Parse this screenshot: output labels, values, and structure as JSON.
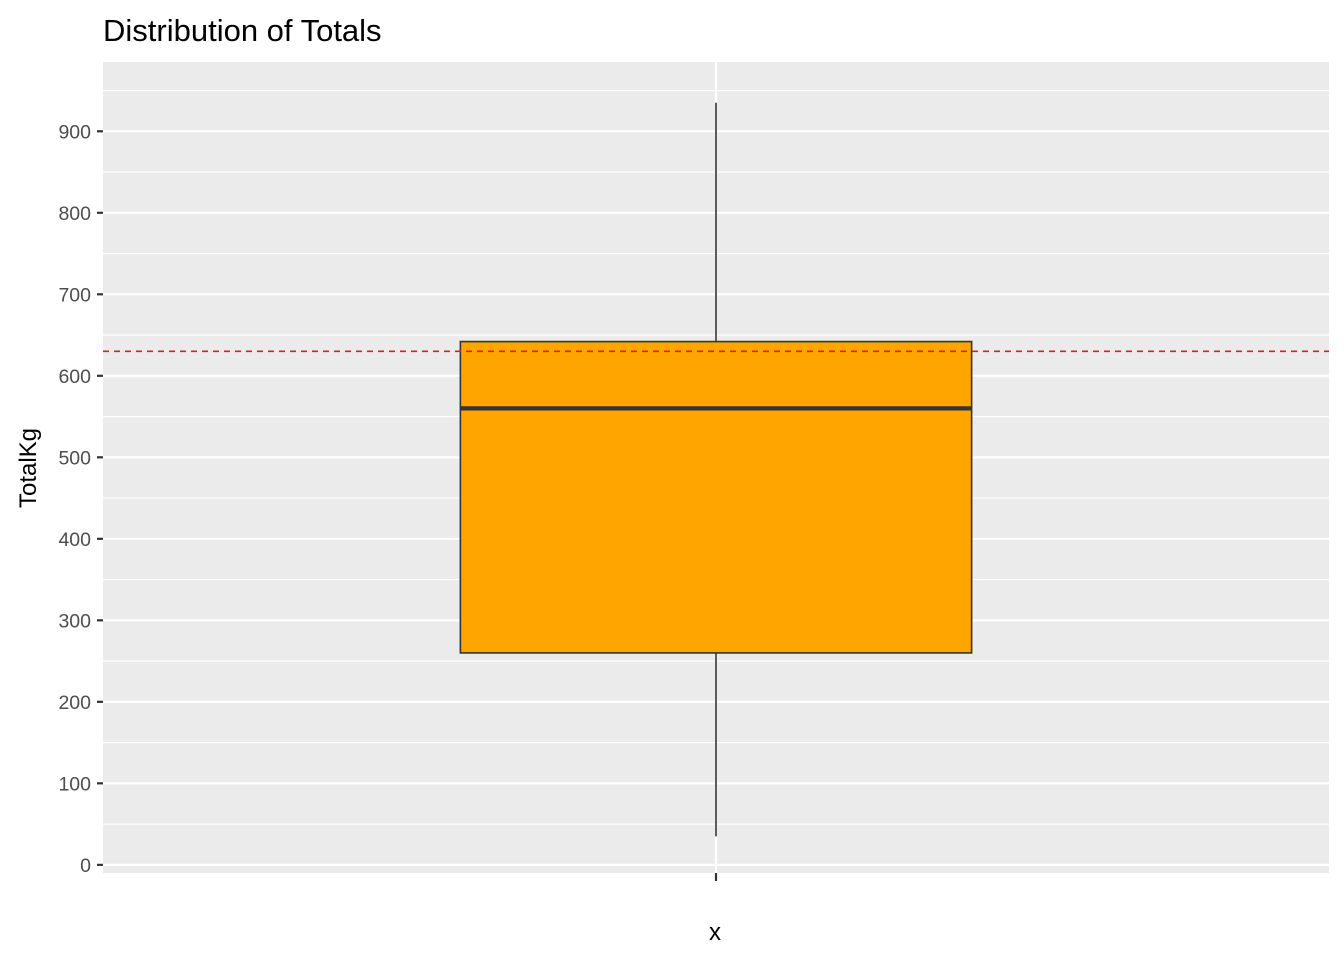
{
  "chart_data": {
    "type": "boxplot",
    "title": "Distribution of Totals",
    "xlabel": "x",
    "ylabel": "TotalKg",
    "categories": [
      ""
    ],
    "ylim": [
      -10,
      985
    ],
    "yticks": [
      0,
      100,
      200,
      300,
      400,
      500,
      600,
      700,
      800,
      900
    ],
    "ytick_labels": [
      "0",
      "100",
      "200",
      "300",
      "400",
      "500",
      "600",
      "700",
      "800",
      "900"
    ],
    "grid": true,
    "legend": "none",
    "boxes": [
      {
        "category": "",
        "min": 35,
        "q1": 260,
        "median": 560,
        "q3": 642,
        "max": 935
      }
    ],
    "reference_line": {
      "y": 630,
      "style": "dashed",
      "color": "#e41a1c"
    },
    "colors": {
      "box_fill": "#ffa500",
      "box_stroke": "#333333",
      "panel_background": "#ebebeb",
      "grid": "#ffffff"
    }
  }
}
